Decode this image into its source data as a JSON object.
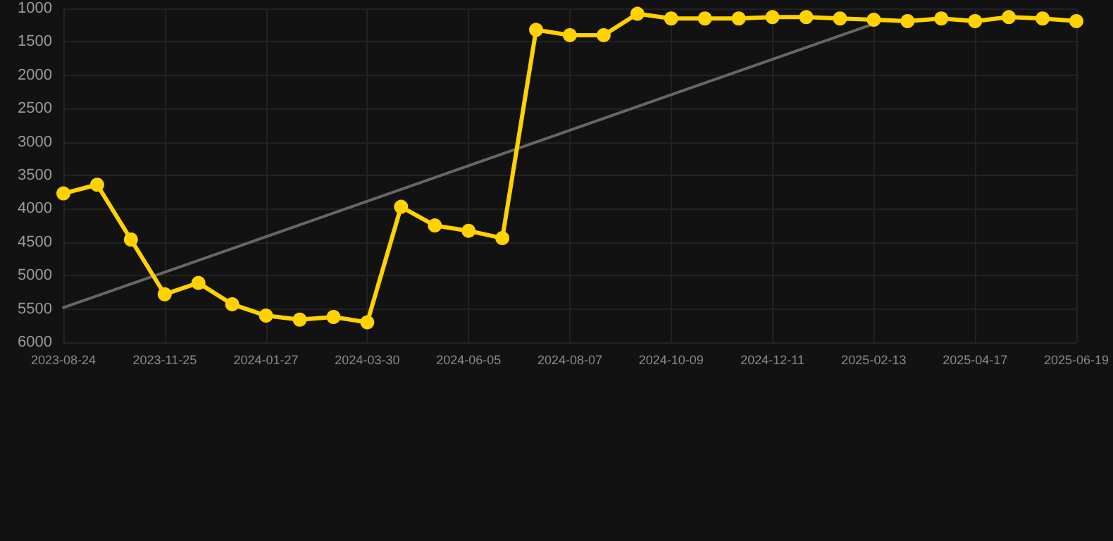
{
  "chart_data": {
    "type": "line",
    "categories": [
      "2023-08-24",
      null,
      null,
      "2023-11-25",
      null,
      null,
      "2024-01-27",
      null,
      null,
      "2024-03-30",
      null,
      null,
      "2024-06-05",
      null,
      null,
      "2024-08-07",
      null,
      null,
      "2024-10-09",
      null,
      null,
      "2024-12-11",
      null,
      null,
      "2025-02-13",
      null,
      null,
      "2025-04-17",
      null,
      null,
      "2025-06-19"
    ],
    "series": [
      {
        "color": "#ffd200",
        "values": [
          3770,
          3640,
          4460,
          5280,
          5110,
          5430,
          5600,
          5660,
          5620,
          5700,
          3970,
          4250,
          4330,
          4440,
          1320,
          1400,
          1400,
          1080,
          1150,
          1150,
          1150,
          1130,
          1130,
          1150,
          1170,
          1190,
          1150,
          1190,
          1130,
          1150,
          1190
        ]
      },
      {
        "type": "line",
        "color": "#666666",
        "marker": "none",
        "values": [
          5480,
          null,
          null,
          null,
          null,
          null,
          null,
          null,
          null,
          null,
          null,
          null,
          null,
          null,
          null,
          null,
          null,
          null,
          null,
          null,
          null,
          null,
          null,
          null,
          1230,
          null,
          null,
          null,
          null,
          null,
          null
        ]
      }
    ],
    "ylim": [
      6000,
      1000
    ],
    "yticks": [
      6000,
      5500,
      5000,
      4500,
      4000,
      3500,
      3000,
      2500,
      2000,
      1500,
      1000
    ],
    "grid": true,
    "marker": "circle",
    "line_style": "solid"
  }
}
